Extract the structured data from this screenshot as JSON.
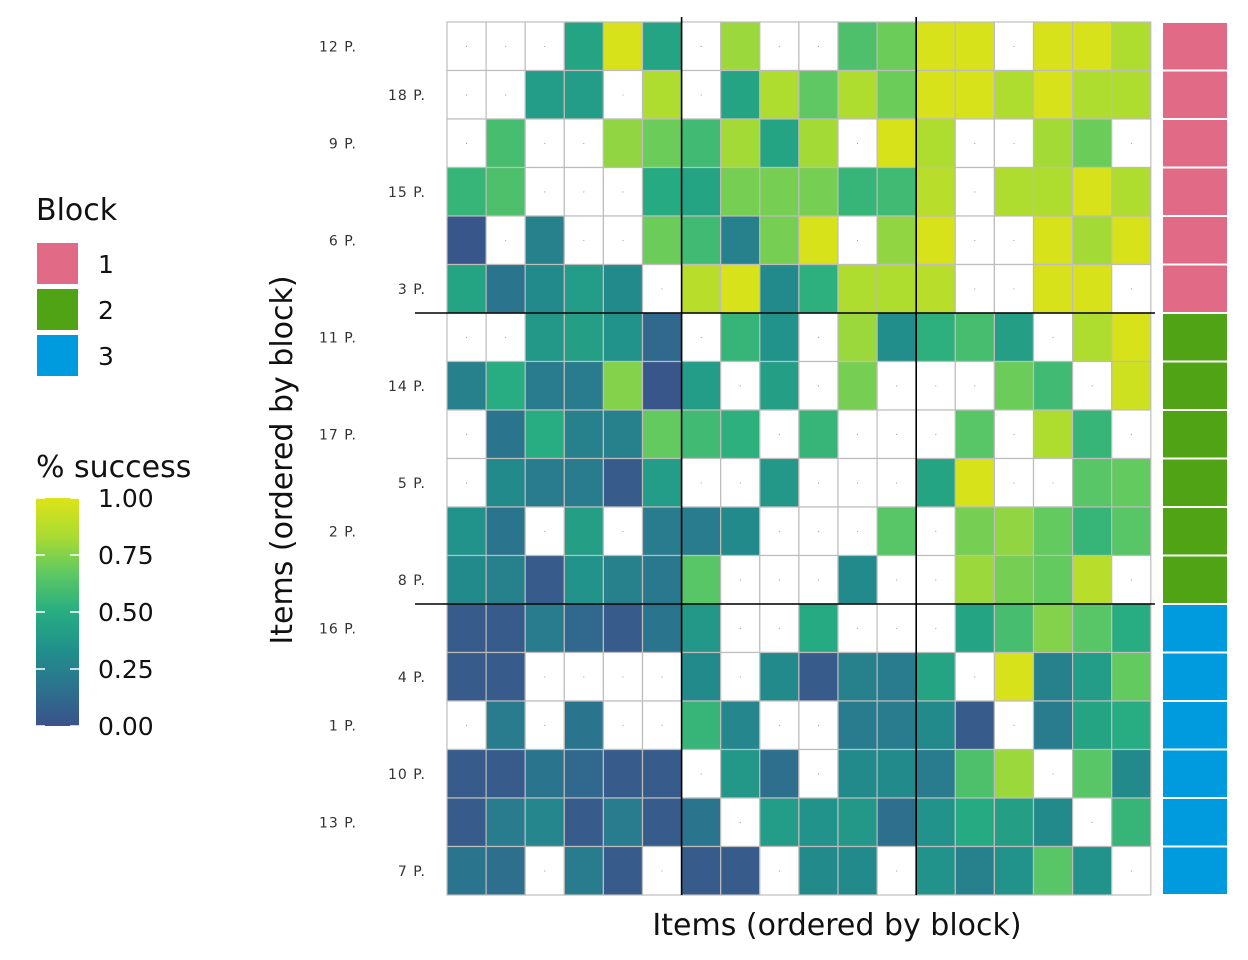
{
  "chart_data": {
    "type": "heatmap",
    "xlabel": "Items (ordered by block)",
    "ylabel": "Items (ordered by block)",
    "row_labels": [
      "12 P.",
      "18 P.",
      "9 P.",
      "15 P.",
      "6 P.",
      "3 P.",
      "11 P.",
      "14 P.",
      "17 P.",
      "5 P.",
      "2 P.",
      "8 P.",
      "16 P.",
      "4 P.",
      "1 P.",
      "10 P.",
      "13 P.",
      "7 P."
    ],
    "row_blocks": [
      1,
      1,
      1,
      1,
      1,
      1,
      2,
      2,
      2,
      2,
      2,
      2,
      3,
      3,
      3,
      3,
      3,
      3
    ],
    "column_block_sizes": [
      6,
      6,
      6
    ],
    "missing_marker": "·",
    "block_legend": {
      "title": "Block",
      "entries": [
        {
          "label": "1",
          "color": "#E16A86"
        },
        {
          "label": "2",
          "color": "#50A315"
        },
        {
          "label": "3",
          "color": "#009ADE"
        }
      ]
    },
    "colorbar": {
      "title": "% success",
      "range": [
        0,
        1
      ],
      "ticks": [
        {
          "value": 1.0,
          "label": "1.00"
        },
        {
          "value": 0.75,
          "label": "0.75"
        },
        {
          "value": 0.5,
          "label": "0.50"
        },
        {
          "value": 0.25,
          "label": "0.25"
        },
        {
          "value": 0.0,
          "label": "0.00"
        }
      ],
      "colors": [
        "#3B528B",
        "#2C728E",
        "#21908C",
        "#27AD81",
        "#5DC863",
        "#AADC32",
        "#DDE318"
      ]
    },
    "values": [
      [
        null,
        null,
        null,
        0.45,
        0.98,
        0.45,
        null,
        0.8,
        null,
        null,
        0.62,
        0.7,
        0.98,
        0.98,
        null,
        0.98,
        0.98,
        0.85
      ],
      [
        null,
        null,
        0.4,
        0.4,
        null,
        0.85,
        null,
        0.45,
        0.85,
        0.67,
        0.85,
        0.7,
        0.98,
        0.98,
        0.85,
        0.98,
        0.85,
        0.85
      ],
      [
        null,
        0.6,
        null,
        null,
        0.78,
        0.7,
        0.58,
        0.82,
        0.45,
        0.82,
        null,
        0.98,
        0.85,
        null,
        null,
        0.82,
        0.7,
        null
      ],
      [
        0.55,
        0.62,
        null,
        null,
        null,
        0.48,
        0.45,
        0.72,
        0.72,
        0.72,
        0.55,
        0.58,
        0.88,
        null,
        0.85,
        0.85,
        0.98,
        0.85
      ],
      [
        0.02,
        null,
        0.25,
        null,
        null,
        0.7,
        0.58,
        0.25,
        0.72,
        0.98,
        null,
        0.78,
        0.98,
        null,
        null,
        0.98,
        0.82,
        0.98
      ],
      [
        0.45,
        0.18,
        0.3,
        0.4,
        0.3,
        null,
        0.88,
        0.98,
        0.3,
        0.52,
        0.85,
        0.85,
        0.88,
        null,
        null,
        0.98,
        0.98,
        null
      ],
      [
        null,
        null,
        0.38,
        0.42,
        0.35,
        0.12,
        null,
        0.55,
        0.35,
        null,
        0.8,
        0.32,
        0.52,
        0.6,
        0.42,
        null,
        0.85,
        0.98
      ],
      [
        0.25,
        0.5,
        0.22,
        0.22,
        0.75,
        0.02,
        0.4,
        null,
        0.42,
        null,
        0.72,
        null,
        null,
        null,
        0.7,
        0.58,
        null,
        0.95
      ],
      [
        null,
        0.18,
        0.5,
        0.25,
        0.25,
        0.68,
        0.58,
        0.52,
        null,
        0.55,
        null,
        null,
        null,
        0.65,
        null,
        0.85,
        0.55,
        null
      ],
      [
        null,
        0.3,
        0.22,
        0.22,
        0.05,
        0.4,
        null,
        null,
        0.38,
        null,
        null,
        null,
        0.45,
        0.98,
        null,
        null,
        0.65,
        0.68
      ],
      [
        0.35,
        0.18,
        null,
        0.42,
        null,
        0.22,
        0.22,
        0.3,
        null,
        null,
        null,
        0.65,
        null,
        0.72,
        0.78,
        0.68,
        0.55,
        0.65
      ],
      [
        0.3,
        0.25,
        0.05,
        0.35,
        0.25,
        0.2,
        0.65,
        null,
        null,
        null,
        0.3,
        null,
        null,
        0.8,
        0.72,
        0.68,
        0.88,
        null
      ],
      [
        0.05,
        0.05,
        0.22,
        0.12,
        0.05,
        0.18,
        0.38,
        null,
        null,
        0.48,
        null,
        null,
        null,
        0.45,
        0.6,
        0.75,
        0.65,
        0.5
      ],
      [
        0.05,
        0.05,
        null,
        null,
        null,
        null,
        0.3,
        null,
        0.3,
        0.05,
        0.25,
        0.22,
        0.45,
        null,
        0.98,
        0.25,
        0.4,
        0.68
      ],
      [
        null,
        0.22,
        null,
        0.18,
        null,
        null,
        0.55,
        0.28,
        null,
        null,
        0.22,
        0.22,
        0.3,
        0.05,
        null,
        0.22,
        0.45,
        0.5
      ],
      [
        0.05,
        0.05,
        0.18,
        0.12,
        0.05,
        0.05,
        null,
        0.38,
        0.15,
        null,
        0.3,
        0.3,
        0.22,
        0.62,
        0.8,
        null,
        0.65,
        0.3
      ],
      [
        0.05,
        0.22,
        0.28,
        0.05,
        0.22,
        0.05,
        0.18,
        null,
        0.4,
        0.35,
        0.38,
        0.15,
        0.35,
        0.48,
        0.42,
        0.3,
        null,
        0.55
      ],
      [
        0.18,
        0.15,
        null,
        0.22,
        0.05,
        null,
        0.05,
        0.05,
        null,
        0.3,
        0.3,
        null,
        0.35,
        0.25,
        0.35,
        0.65,
        0.35,
        null
      ]
    ]
  }
}
